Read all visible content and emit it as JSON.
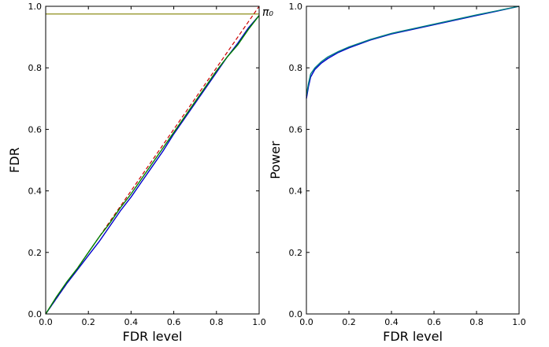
{
  "chart_data": [
    {
      "type": "line",
      "title": "",
      "xlabel": "FDR level",
      "ylabel": "FDR",
      "xlim": [
        0,
        1
      ],
      "ylim": [
        0,
        1
      ],
      "xticks": [
        "0.0",
        "0.2",
        "0.4",
        "0.6",
        "0.8",
        "1.0"
      ],
      "yticks": [
        "0.0",
        "0.2",
        "0.4",
        "0.6",
        "0.8",
        "1.0"
      ],
      "grid": false,
      "annotation": "π₀",
      "annotation_value": 0.975,
      "reference_lines": [
        {
          "color": "#cc0000",
          "style": "dashed",
          "x": [
            0,
            1
          ],
          "y": [
            0,
            1
          ]
        },
        {
          "color": "#808000",
          "style": "solid",
          "x": [
            0,
            1
          ],
          "y": [
            0.975,
            0.975
          ]
        }
      ],
      "series": [
        {
          "color": "#0000cc",
          "x": [
            0,
            0.05,
            0.1,
            0.15,
            0.2,
            0.25,
            0.3,
            0.35,
            0.4,
            0.45,
            0.5,
            0.55,
            0.6,
            0.65,
            0.7,
            0.75,
            0.8,
            0.85,
            0.9,
            0.95,
            1.0
          ],
          "y": [
            0,
            0.05,
            0.1,
            0.145,
            0.19,
            0.235,
            0.285,
            0.335,
            0.38,
            0.43,
            0.48,
            0.53,
            0.585,
            0.635,
            0.685,
            0.735,
            0.785,
            0.835,
            0.88,
            0.93,
            0.97
          ]
        },
        {
          "color": "#008000",
          "x": [
            0,
            0.05,
            0.1,
            0.15,
            0.2,
            0.25,
            0.3,
            0.35,
            0.4,
            0.45,
            0.5,
            0.55,
            0.6,
            0.65,
            0.7,
            0.75,
            0.8,
            0.85,
            0.9,
            0.95,
            1.0
          ],
          "y": [
            0,
            0.055,
            0.105,
            0.15,
            0.2,
            0.25,
            0.295,
            0.345,
            0.39,
            0.44,
            0.49,
            0.54,
            0.59,
            0.64,
            0.69,
            0.74,
            0.79,
            0.835,
            0.875,
            0.925,
            0.97
          ]
        }
      ]
    },
    {
      "type": "line",
      "title": "",
      "xlabel": "FDR level",
      "ylabel": "Power",
      "xlim": [
        0,
        1
      ],
      "ylim": [
        0,
        1
      ],
      "xticks": [
        "0.0",
        "0.2",
        "0.4",
        "0.6",
        "0.8",
        "1.0"
      ],
      "yticks": [
        "0.0",
        "0.2",
        "0.4",
        "0.6",
        "0.8",
        "1.0"
      ],
      "grid": false,
      "series": [
        {
          "color": "#0000cc",
          "x": [
            0,
            0.01,
            0.02,
            0.04,
            0.07,
            0.1,
            0.15,
            0.2,
            0.3,
            0.4,
            0.5,
            0.6,
            0.7,
            0.8,
            0.9,
            1.0
          ],
          "y": [
            0.7,
            0.74,
            0.77,
            0.795,
            0.815,
            0.83,
            0.85,
            0.865,
            0.89,
            0.91,
            0.925,
            0.94,
            0.955,
            0.97,
            0.985,
            1.0
          ]
        },
        {
          "color": "#008080",
          "x": [
            0,
            0.01,
            0.02,
            0.04,
            0.07,
            0.1,
            0.15,
            0.2,
            0.3,
            0.4,
            0.5,
            0.6,
            0.7,
            0.8,
            0.9,
            1.0
          ],
          "y": [
            0.71,
            0.75,
            0.78,
            0.8,
            0.82,
            0.835,
            0.853,
            0.868,
            0.892,
            0.912,
            0.927,
            0.942,
            0.957,
            0.972,
            0.986,
            1.0
          ]
        }
      ]
    }
  ]
}
